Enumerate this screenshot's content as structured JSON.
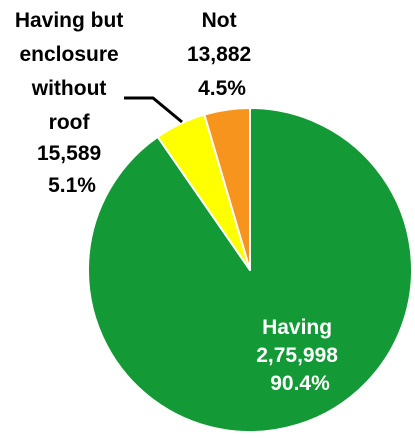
{
  "chart_data": {
    "type": "pie",
    "slices": [
      {
        "name": "Having",
        "value": 275998,
        "value_label": "2,75,998",
        "percent": 90.4,
        "percent_label": "90.4%",
        "color": "#139935",
        "label_lines": [
          "Having",
          "2,75,998",
          "90.4%"
        ],
        "label_color": "#ffffff"
      },
      {
        "name": "Having but enclosure without roof",
        "value": 15589,
        "value_label": "15,589",
        "percent": 5.1,
        "percent_label": "5.1%",
        "color": "#ffff00",
        "label_lines": [
          "Having but",
          "enclosure",
          "without",
          "roof",
          "15,589",
          "5.1%"
        ],
        "label_color": "#000000"
      },
      {
        "name": "Not",
        "value": 13882,
        "value_label": "13,882",
        "percent": 4.5,
        "percent_label": "4.5%",
        "color": "#f7941d",
        "label_lines": [
          "Not",
          "13,882",
          "4.5%"
        ],
        "label_color": "#000000"
      }
    ],
    "start": "12 o'clock",
    "direction": "clockwise",
    "legend": "none"
  }
}
